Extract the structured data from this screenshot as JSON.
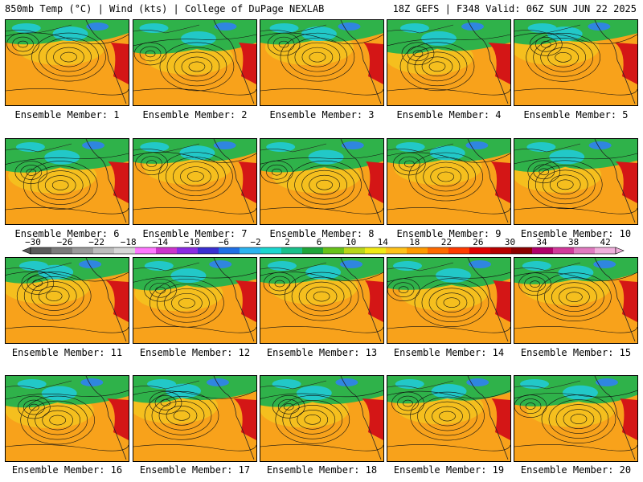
{
  "header": {
    "left": "850mb Temp (°C) | Wind (kts) | College of DuPage NEXLAB",
    "right": "18Z GEFS | F348 Valid: 06Z SUN JUN 22 2025"
  },
  "panels": [
    {
      "label": "Ensemble Member: 1",
      "member": 1
    },
    {
      "label": "Ensemble Member: 2",
      "member": 2
    },
    {
      "label": "Ensemble Member: 3",
      "member": 3
    },
    {
      "label": "Ensemble Member: 4",
      "member": 4
    },
    {
      "label": "Ensemble Member: 5",
      "member": 5
    },
    {
      "label": "Ensemble Member: 6",
      "member": 6
    },
    {
      "label": "Ensemble Member: 7",
      "member": 7
    },
    {
      "label": "Ensemble Member: 8",
      "member": 8
    },
    {
      "label": "Ensemble Member: 9",
      "member": 9
    },
    {
      "label": "Ensemble Member: 10",
      "member": 10
    },
    {
      "label": "Ensemble Member: 11",
      "member": 11
    },
    {
      "label": "Ensemble Member: 12",
      "member": 12
    },
    {
      "label": "Ensemble Member: 13",
      "member": 13
    },
    {
      "label": "Ensemble Member: 14",
      "member": 14
    },
    {
      "label": "Ensemble Member: 15",
      "member": 15
    },
    {
      "label": "Ensemble Member: 16",
      "member": 16
    },
    {
      "label": "Ensemble Member: 17",
      "member": 17
    },
    {
      "label": "Ensemble Member: 18",
      "member": 18
    },
    {
      "label": "Ensemble Member: 19",
      "member": 19
    },
    {
      "label": "Ensemble Member: 20",
      "member": 20
    }
  ],
  "colorbar": {
    "ticks": [
      "−30",
      "−26",
      "−22",
      "−18",
      "−14",
      "−10",
      "−6",
      "−2",
      "2",
      "6",
      "10",
      "14",
      "18",
      "22",
      "26",
      "30",
      "34",
      "38",
      "42"
    ],
    "colors": [
      "#5a5a5a",
      "#7a7a7a",
      "#9a9a9a",
      "#bdbdbd",
      "#d7d7d7",
      "#ff77ff",
      "#cc33cc",
      "#8a2be2",
      "#3a2fd1",
      "#1f6fe6",
      "#2cb3ef",
      "#1ad7cf",
      "#19c08a",
      "#1fa53a",
      "#67c21a",
      "#b9d61a",
      "#f0e916",
      "#ffc21a",
      "#ff9a00",
      "#ff6a00",
      "#ff3a00",
      "#e00000",
      "#b80000",
      "#8c0000",
      "#b0006a",
      "#d13a9b",
      "#e07ac0",
      "#f0b0dc"
    ]
  },
  "map_colors": {
    "warm": "#f8a21b",
    "mild": "#f4c21f",
    "green": "#2fb24a",
    "cool": "#22c8c8",
    "cold": "#2f86e0",
    "hot": "#d41616",
    "contour": "#111111"
  }
}
